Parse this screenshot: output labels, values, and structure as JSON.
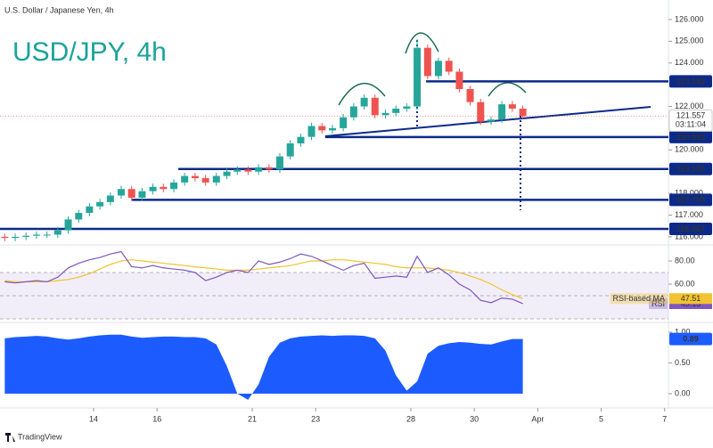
{
  "brand": "TradingView",
  "chart_data": [
    {
      "type": "candlestick",
      "title": "USD/JPY, 4h",
      "subtitle": "U.S. Dollar / Japanese Yen, 4h",
      "x": [
        -2.8,
        -2.47,
        -2.13,
        -1.8,
        -1.47,
        -1.13,
        -0.8,
        -0.47,
        -0.13,
        0.2,
        0.53,
        0.87,
        1.2,
        1.53,
        1.87,
        2.2,
        2.53,
        2.87,
        3.2,
        3.53,
        3.87,
        4.2,
        4.53,
        4.87,
        5.2,
        5.53,
        5.87,
        6.2,
        6.53,
        6.87,
        7.2,
        7.53,
        7.87,
        8.2,
        8.53,
        8.87,
        9.2,
        9.53,
        9.87,
        10.2,
        10.53,
        10.87,
        11.2,
        11.53,
        11.87,
        12.2,
        12.53,
        12.87,
        13.2,
        13.53
      ],
      "open": [
        116.0,
        115.95,
        116.0,
        116.05,
        116.1,
        116.1,
        116.3,
        116.8,
        117.1,
        117.4,
        117.6,
        117.9,
        118.2,
        117.8,
        118.1,
        118.3,
        118.2,
        118.5,
        118.8,
        118.7,
        118.5,
        118.8,
        119.0,
        119.1,
        119.0,
        119.2,
        119.1,
        119.7,
        120.3,
        120.6,
        121.1,
        120.9,
        121.0,
        121.5,
        122.0,
        122.4,
        121.6,
        121.7,
        121.9,
        122.0,
        124.7,
        123.4,
        124.1,
        123.6,
        122.8,
        122.2,
        121.3,
        121.4,
        122.1,
        121.9
      ],
      "high": [
        116.15,
        116.15,
        116.2,
        116.25,
        116.25,
        116.45,
        116.95,
        117.25,
        117.55,
        117.75,
        118.05,
        118.35,
        118.35,
        118.25,
        118.45,
        118.45,
        118.65,
        118.95,
        118.95,
        118.85,
        118.95,
        119.15,
        119.25,
        119.25,
        119.35,
        119.35,
        119.85,
        120.45,
        120.75,
        121.25,
        121.25,
        121.15,
        121.65,
        122.15,
        122.55,
        122.55,
        121.85,
        122.05,
        122.15,
        125.1,
        124.85,
        124.25,
        124.25,
        123.75,
        122.95,
        122.35,
        121.55,
        122.25,
        122.25,
        122.05
      ],
      "low": [
        115.8,
        115.8,
        115.85,
        115.9,
        115.95,
        115.95,
        116.15,
        116.65,
        116.95,
        117.25,
        117.45,
        117.75,
        117.65,
        117.65,
        117.95,
        118.05,
        118.05,
        118.35,
        118.55,
        118.35,
        118.35,
        118.65,
        118.85,
        118.85,
        118.85,
        118.95,
        118.95,
        119.55,
        120.15,
        120.45,
        120.75,
        120.75,
        120.85,
        121.35,
        121.85,
        121.45,
        121.45,
        121.55,
        121.75,
        121.85,
        123.25,
        123.25,
        123.45,
        122.65,
        122.05,
        121.15,
        121.15,
        121.25,
        121.75,
        121.41
      ],
      "close": [
        115.95,
        116.0,
        116.05,
        116.1,
        116.1,
        116.3,
        116.8,
        117.1,
        117.4,
        117.6,
        117.9,
        118.2,
        117.8,
        118.1,
        118.3,
        118.2,
        118.5,
        118.8,
        118.7,
        118.5,
        118.8,
        119.0,
        119.1,
        119.0,
        119.2,
        119.1,
        119.7,
        120.3,
        120.6,
        121.1,
        120.9,
        121.0,
        121.5,
        122.0,
        122.4,
        121.6,
        121.7,
        121.9,
        122.0,
        124.7,
        123.4,
        124.1,
        123.6,
        122.8,
        122.2,
        121.3,
        121.4,
        122.1,
        121.9,
        121.557
      ],
      "countdown": "03:11:04",
      "up_color": "#26a69a",
      "down_color": "#ef5350",
      "level_color": "#0c2a8a",
      "levels": [
        {
          "value": 123.152,
          "label": "123.152",
          "x_start": 10.48
        },
        {
          "value": 120.592,
          "label": "120.592",
          "x_start": 7.3
        },
        {
          "value": 119.122,
          "label": "119.122",
          "x_start": 2.67
        },
        {
          "value": 117.703,
          "label": "117.703",
          "x_start": 1.21
        },
        {
          "value": 116.367,
          "label": "116.367",
          "x_start": -2.95
        }
      ],
      "trendline": {
        "x": [
          7.3,
          17.56
        ],
        "y": [
          120.63,
          121.98
        ]
      },
      "xlim": [
        -2.95,
        18.12
      ],
      "ylim": [
        115.75,
        126.9
      ],
      "xticks": [
        {
          "value": 0,
          "label": "14"
        },
        {
          "value": 2,
          "label": "16"
        },
        {
          "value": 5,
          "label": "21"
        },
        {
          "value": 7,
          "label": "23"
        },
        {
          "value": 10,
          "label": "28"
        },
        {
          "value": 12,
          "label": "30"
        },
        {
          "value": 14,
          "label": "Apr"
        },
        {
          "value": 16,
          "label": "5"
        },
        {
          "value": 18,
          "label": "7"
        }
      ],
      "yticks": [
        {
          "value": 116,
          "label": "116.000"
        },
        {
          "value": 117,
          "label": "117.000"
        },
        {
          "value": 118,
          "label": "118.000"
        },
        {
          "value": 120,
          "label": "120.000"
        },
        {
          "value": 122,
          "label": "122.000"
        },
        {
          "value": 124,
          "label": "124.000"
        },
        {
          "value": 125,
          "label": "125.000"
        },
        {
          "value": 126,
          "label": "126.000"
        }
      ],
      "grid": false
    },
    {
      "type": "line",
      "ylim": [
        28.5,
        91.5
      ],
      "yticks": [
        {
          "value": 80,
          "label": "80.00"
        },
        {
          "value": 60,
          "label": "60.00"
        }
      ],
      "band": [
        30,
        70
      ],
      "hlines": [
        70,
        50,
        30
      ],
      "series": [
        {
          "name": "RSI",
          "color": "#7e57c2",
          "values": [
            62,
            61,
            62,
            63,
            62,
            66,
            74,
            78,
            81,
            83,
            86,
            88,
            75,
            74,
            76,
            74,
            73,
            72,
            70,
            63,
            66,
            70,
            72,
            70,
            80,
            77,
            79,
            82,
            86,
            84,
            80,
            76,
            72,
            76,
            78,
            65,
            66,
            67,
            66,
            84,
            70,
            74,
            68,
            60,
            55,
            46,
            44,
            48,
            47,
            43.13
          ]
        },
        {
          "name": "RSI-based MA",
          "color": "#f2c230",
          "values": [
            63,
            62,
            62,
            62,
            62,
            63,
            64,
            66,
            69,
            73,
            77,
            80,
            81,
            80,
            79,
            78,
            77,
            76,
            75,
            74,
            73,
            72,
            72,
            72,
            73,
            74,
            75,
            76,
            78,
            80,
            80,
            81,
            81,
            80,
            79,
            78,
            77,
            75,
            74,
            74,
            74,
            73,
            72,
            70,
            67,
            64,
            60,
            55,
            51,
            47.51
          ]
        }
      ]
    },
    {
      "type": "area",
      "color": "#1c5cff",
      "ylim": [
        -0.188,
        1.116
      ],
      "yticks": [
        {
          "value": 1,
          "label": "1.00"
        },
        {
          "value": 0.5,
          "label": "0.50"
        },
        {
          "value": 0,
          "label": "0.00"
        }
      ],
      "values": [
        0.9,
        0.92,
        0.93,
        0.94,
        0.93,
        0.9,
        0.88,
        0.9,
        0.93,
        0.95,
        0.96,
        0.96,
        0.93,
        0.91,
        0.92,
        0.93,
        0.93,
        0.92,
        0.92,
        0.9,
        0.8,
        0.45,
        0,
        -0.1,
        0.15,
        0.6,
        0.83,
        0.9,
        0.93,
        0.94,
        0.95,
        0.94,
        0.95,
        0.95,
        0.94,
        0.9,
        0.7,
        0.3,
        0.05,
        0.2,
        0.65,
        0.78,
        0.82,
        0.84,
        0.83,
        0.81,
        0.8,
        0.85,
        0.89,
        0.89
      ]
    }
  ]
}
